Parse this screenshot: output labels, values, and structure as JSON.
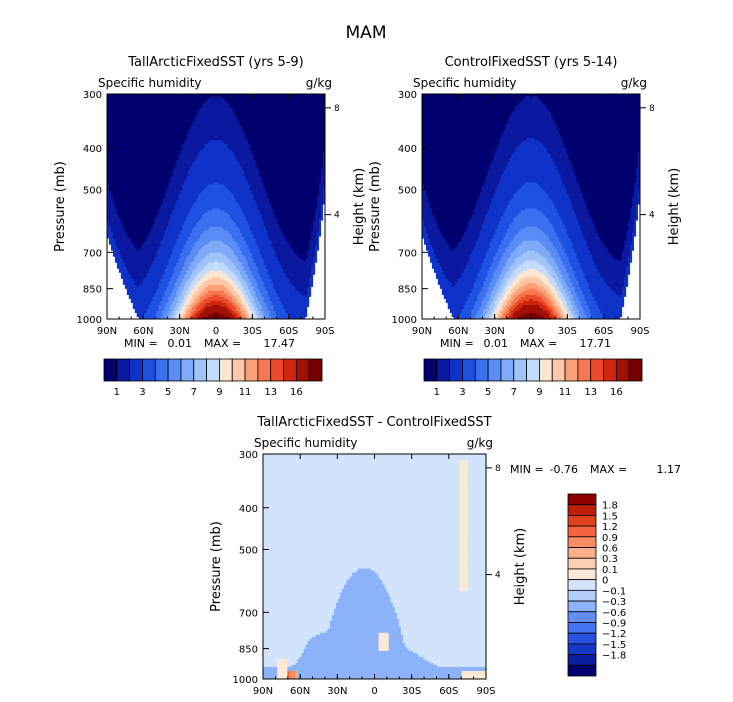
{
  "figure_title": "MAM",
  "colors": {
    "seq": [
      "#00006e",
      "#0a19a0",
      "#0f32c8",
      "#1e50e1",
      "#3c6ef0",
      "#5a8cf5",
      "#7eaaf8",
      "#a0c4fa",
      "#c4dcfb",
      "#fbe6d2",
      "#fcc8aa",
      "#fca078",
      "#f77850",
      "#eb4b28",
      "#cd280f",
      "#a01005",
      "#780000"
    ],
    "div": [
      "#00006e",
      "#0a1ea0",
      "#1437c8",
      "#2850e1",
      "#4673f0",
      "#648cf5",
      "#8cb2fa",
      "#b4cefb",
      "#d2e4fc",
      "#fbe9d5",
      "#fbcfb4",
      "#fbb08c",
      "#fa8c64",
      "#f5643c",
      "#e1401e",
      "#be1e0a",
      "#8c0000"
    ]
  },
  "chart_data": [
    {
      "type": "heatmap",
      "title": "TallArcticFixedSST (yrs 5-9)",
      "variable": "Specific humidity",
      "units": "g/kg",
      "ylabel": "Pressure (mb)",
      "ylabel_right": "Height (km)",
      "x_ticks": [
        "90N",
        "60N",
        "30N",
        "0",
        "30S",
        "60S",
        "90S"
      ],
      "y_ticks": [
        300,
        400,
        500,
        700,
        850,
        1000
      ],
      "height_ticks": [
        8,
        4
      ],
      "min_label": "MIN =",
      "min_value": "0.01",
      "max_label": "MAX =",
      "max_value": "17.47",
      "colorbar_labels": [
        "1",
        "3",
        "5",
        "7",
        "9",
        "11",
        "13",
        "16"
      ],
      "scale": "sequential"
    },
    {
      "type": "heatmap",
      "title": "ControlFixedSST (yrs 5-14)",
      "variable": "Specific humidity",
      "units": "g/kg",
      "ylabel": "Pressure (mb)",
      "ylabel_right": "Height (km)",
      "x_ticks": [
        "90N",
        "60N",
        "30N",
        "0",
        "30S",
        "60S",
        "90S"
      ],
      "y_ticks": [
        300,
        400,
        500,
        700,
        850,
        1000
      ],
      "height_ticks": [
        8,
        4
      ],
      "min_label": "MIN =",
      "min_value": "0.01",
      "max_label": "MAX =",
      "max_value": "17.71",
      "colorbar_labels": [
        "1",
        "3",
        "5",
        "7",
        "9",
        "11",
        "13",
        "16"
      ],
      "scale": "sequential"
    },
    {
      "type": "heatmap",
      "title": "TallArcticFixedSST - ControlFixedSST",
      "variable": "Specific humidity",
      "units": "g/kg",
      "ylabel": "Pressure (mb)",
      "ylabel_right": "Height (km)",
      "x_ticks": [
        "90N",
        "60N",
        "30N",
        "0",
        "30S",
        "60S",
        "90S"
      ],
      "y_ticks": [
        300,
        400,
        500,
        700,
        850,
        1000
      ],
      "height_ticks": [
        8,
        4
      ],
      "min_label": "MIN =",
      "min_value": "-0.76",
      "max_label": "MAX =",
      "max_value": "1.17",
      "colorbar_labels": [
        "1.8",
        "1.5",
        "1.2",
        "0.9",
        "0.6",
        "0.3",
        "0.1",
        "0",
        "−0.1",
        "−0.3",
        "−0.6",
        "−0.9",
        "−1.2",
        "−1.5",
        "−1.8"
      ],
      "scale": "diverging"
    }
  ]
}
